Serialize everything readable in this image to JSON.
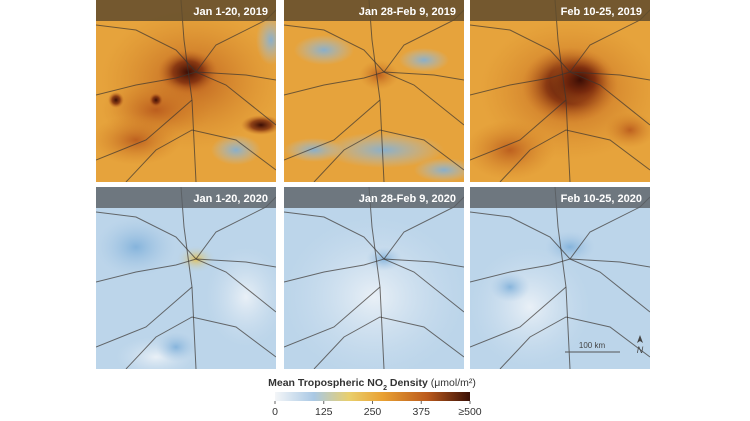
{
  "panels": [
    [
      "Jan 1-20, 2019",
      "Jan 28-Feb 9, 2019",
      "Feb 10-25, 2019"
    ],
    [
      "Jan 1-20, 2020",
      "Jan 28-Feb 9, 2020",
      "Feb 10-25, 2020"
    ]
  ],
  "scale_bar": "100 km",
  "north_label": "N",
  "legend": {
    "title": "Mean Tropospheric NO",
    "subscript": "2",
    "title_rest": " Density ",
    "unit": "(μmol/m²)",
    "ticks": [
      0,
      125,
      250,
      375,
      {
        "value": 500,
        "label": "≥500"
      }
    ]
  }
}
